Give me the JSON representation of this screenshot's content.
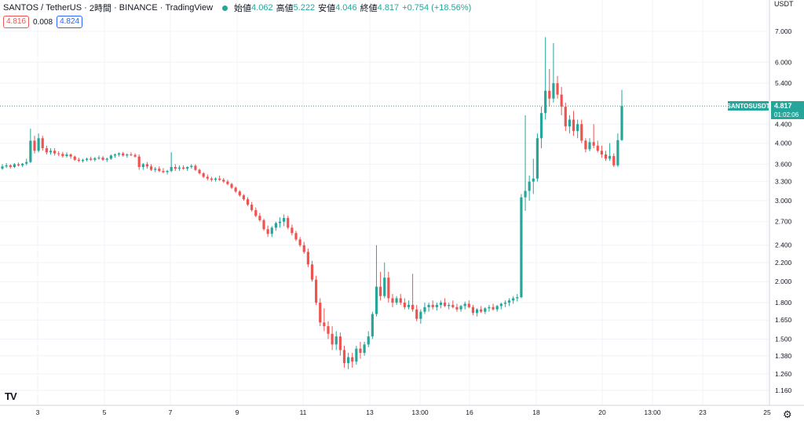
{
  "header": {
    "symbol": "SANTOS",
    "sep1": "/",
    "quote": "TetherUS",
    "sep2": "·",
    "interval": "2時間",
    "sep3": "·",
    "exchange": "BINANCE",
    "sep4": "·",
    "source": "TradingView",
    "open_label": "始値",
    "open_value": "4.062",
    "high_label": "高値",
    "high_value": "5.222",
    "low_label": "安値",
    "low_value": "4.046",
    "close_label": "終値",
    "close_value": "4.817",
    "change_value": "+0.754 (+18.56%)"
  },
  "quote_boxes": {
    "bid": "4.816",
    "spread": "0.008",
    "ask": "4.824"
  },
  "price_label": {
    "ticker": "SANTOSUSDT",
    "price": "4.817",
    "countdown": "01:02:06"
  },
  "logo_text": "TV",
  "colors": {
    "up": "#26a69a",
    "down": "#ef5350",
    "grid": "#f0f3fa",
    "axis_text": "#131722"
  },
  "chart_data": {
    "type": "candlestick",
    "y_axis": {
      "currency": "USDT",
      "scale": "log",
      "ticks": [
        7.0,
        6.0,
        5.4,
        4.4,
        4.0,
        3.6,
        3.3,
        3.0,
        2.7,
        2.4,
        2.2,
        2.0,
        1.8,
        1.65,
        1.5,
        1.38,
        1.26,
        1.16
      ],
      "tick_labels": [
        "7.000",
        "6.000",
        "5.400",
        "4.400",
        "4.000",
        "3.600",
        "3.300",
        "3.000",
        "2.700",
        "2.400",
        "2.200",
        "2.000",
        "1.800",
        "1.650",
        "1.500",
        "1.380",
        "1.260",
        "1.160"
      ]
    },
    "x_axis": {
      "tick_labels": [
        "3",
        "5",
        "7",
        "9",
        "11",
        "13",
        "13:00",
        "16",
        "18",
        "20",
        "13:00",
        "23",
        "25"
      ]
    },
    "last_price": 4.817,
    "candles": [
      [
        3.52,
        3.6,
        3.5,
        3.56
      ],
      [
        3.56,
        3.62,
        3.53,
        3.58
      ],
      [
        3.58,
        3.6,
        3.52,
        3.55
      ],
      [
        3.55,
        3.62,
        3.53,
        3.6
      ],
      [
        3.6,
        3.63,
        3.56,
        3.58
      ],
      [
        3.58,
        3.62,
        3.55,
        3.61
      ],
      [
        3.61,
        3.7,
        3.58,
        3.64
      ],
      [
        3.64,
        4.3,
        3.62,
        4.05
      ],
      [
        4.05,
        4.15,
        3.8,
        3.85
      ],
      [
        3.85,
        4.2,
        3.82,
        4.1
      ],
      [
        4.1,
        4.15,
        3.85,
        3.9
      ],
      [
        3.9,
        3.95,
        3.78,
        3.82
      ],
      [
        3.82,
        3.9,
        3.78,
        3.85
      ],
      [
        3.85,
        3.9,
        3.76,
        3.8
      ],
      [
        3.8,
        3.84,
        3.75,
        3.79
      ],
      [
        3.79,
        3.83,
        3.72,
        3.75
      ],
      [
        3.75,
        3.82,
        3.72,
        3.78
      ],
      [
        3.78,
        3.8,
        3.7,
        3.74
      ],
      [
        3.74,
        3.76,
        3.66,
        3.68
      ],
      [
        3.68,
        3.72,
        3.64,
        3.66
      ],
      [
        3.66,
        3.7,
        3.63,
        3.68
      ],
      [
        3.68,
        3.72,
        3.65,
        3.7
      ],
      [
        3.7,
        3.74,
        3.66,
        3.68
      ],
      [
        3.68,
        3.73,
        3.65,
        3.71
      ],
      [
        3.71,
        3.76,
        3.68,
        3.72
      ],
      [
        3.72,
        3.75,
        3.66,
        3.68
      ],
      [
        3.68,
        3.72,
        3.64,
        3.7
      ],
      [
        3.7,
        3.78,
        3.68,
        3.76
      ],
      [
        3.76,
        3.8,
        3.72,
        3.78
      ],
      [
        3.78,
        3.82,
        3.74,
        3.8
      ],
      [
        3.8,
        3.83,
        3.74,
        3.76
      ],
      [
        3.76,
        3.8,
        3.72,
        3.78
      ],
      [
        3.78,
        3.82,
        3.75,
        3.77
      ],
      [
        3.77,
        3.8,
        3.72,
        3.74
      ],
      [
        3.74,
        3.78,
        3.5,
        3.55
      ],
      [
        3.55,
        3.62,
        3.5,
        3.6
      ],
      [
        3.6,
        3.64,
        3.52,
        3.56
      ],
      [
        3.56,
        3.6,
        3.48,
        3.5
      ],
      [
        3.5,
        3.55,
        3.46,
        3.52
      ],
      [
        3.52,
        3.56,
        3.46,
        3.48
      ],
      [
        3.48,
        3.53,
        3.44,
        3.46
      ],
      [
        3.46,
        3.5,
        3.42,
        3.48
      ],
      [
        3.48,
        3.82,
        3.46,
        3.55
      ],
      [
        3.55,
        3.6,
        3.48,
        3.52
      ],
      [
        3.52,
        3.58,
        3.48,
        3.54
      ],
      [
        3.54,
        3.58,
        3.5,
        3.52
      ],
      [
        3.52,
        3.56,
        3.48,
        3.55
      ],
      [
        3.55,
        3.6,
        3.52,
        3.57
      ],
      [
        3.57,
        3.6,
        3.48,
        3.5
      ],
      [
        3.5,
        3.52,
        3.42,
        3.44
      ],
      [
        3.44,
        3.46,
        3.36,
        3.38
      ],
      [
        3.38,
        3.42,
        3.32,
        3.35
      ],
      [
        3.35,
        3.38,
        3.3,
        3.33
      ],
      [
        3.33,
        3.37,
        3.3,
        3.35
      ],
      [
        3.35,
        3.4,
        3.31,
        3.33
      ],
      [
        3.33,
        3.36,
        3.28,
        3.3
      ],
      [
        3.3,
        3.33,
        3.24,
        3.26
      ],
      [
        3.26,
        3.28,
        3.18,
        3.2
      ],
      [
        3.2,
        3.22,
        3.12,
        3.14
      ],
      [
        3.14,
        3.16,
        3.06,
        3.08
      ],
      [
        3.08,
        3.1,
        3.0,
        3.02
      ],
      [
        3.02,
        3.05,
        2.92,
        2.94
      ],
      [
        2.94,
        2.98,
        2.84,
        2.86
      ],
      [
        2.86,
        2.9,
        2.76,
        2.78
      ],
      [
        2.78,
        2.82,
        2.7,
        2.72
      ],
      [
        2.72,
        2.74,
        2.58,
        2.6
      ],
      [
        2.6,
        2.65,
        2.5,
        2.54
      ],
      [
        2.54,
        2.64,
        2.5,
        2.62
      ],
      [
        2.62,
        2.7,
        2.58,
        2.68
      ],
      [
        2.68,
        2.76,
        2.62,
        2.7
      ],
      [
        2.7,
        2.8,
        2.64,
        2.75
      ],
      [
        2.75,
        2.78,
        2.6,
        2.62
      ],
      [
        2.62,
        2.66,
        2.52,
        2.55
      ],
      [
        2.55,
        2.58,
        2.45,
        2.47
      ],
      [
        2.47,
        2.5,
        2.38,
        2.4
      ],
      [
        2.4,
        2.44,
        2.3,
        2.32
      ],
      [
        2.32,
        2.36,
        2.15,
        2.18
      ],
      [
        2.18,
        2.22,
        2.0,
        2.02
      ],
      [
        2.02,
        2.06,
        1.78,
        1.8
      ],
      [
        1.8,
        1.84,
        1.6,
        1.63
      ],
      [
        1.63,
        1.75,
        1.56,
        1.6
      ],
      [
        1.6,
        1.64,
        1.5,
        1.54
      ],
      [
        1.54,
        1.6,
        1.42,
        1.46
      ],
      [
        1.46,
        1.56,
        1.42,
        1.52
      ],
      [
        1.52,
        1.55,
        1.38,
        1.42
      ],
      [
        1.42,
        1.45,
        1.3,
        1.33
      ],
      [
        1.33,
        1.4,
        1.29,
        1.37
      ],
      [
        1.37,
        1.4,
        1.3,
        1.34
      ],
      [
        1.34,
        1.45,
        1.32,
        1.43
      ],
      [
        1.43,
        1.48,
        1.36,
        1.4
      ],
      [
        1.4,
        1.48,
        1.38,
        1.46
      ],
      [
        1.46,
        1.56,
        1.44,
        1.52
      ],
      [
        1.52,
        1.72,
        1.5,
        1.7
      ],
      [
        1.7,
        2.4,
        1.68,
        1.95
      ],
      [
        1.95,
        2.1,
        1.82,
        1.86
      ],
      [
        1.86,
        2.2,
        1.84,
        2.04
      ],
      [
        2.04,
        2.1,
        1.8,
        1.84
      ],
      [
        1.84,
        1.88,
        1.76,
        1.8
      ],
      [
        1.8,
        1.86,
        1.78,
        1.84
      ],
      [
        1.84,
        1.88,
        1.78,
        1.8
      ],
      [
        1.8,
        1.84,
        1.74,
        1.76
      ],
      [
        1.76,
        1.82,
        1.74,
        1.78
      ],
      [
        1.78,
        2.08,
        1.72,
        1.74
      ],
      [
        1.74,
        1.78,
        1.64,
        1.66
      ],
      [
        1.66,
        1.74,
        1.62,
        1.72
      ],
      [
        1.72,
        1.8,
        1.7,
        1.76
      ],
      [
        1.76,
        1.8,
        1.72,
        1.78
      ],
      [
        1.78,
        1.82,
        1.74,
        1.76
      ],
      [
        1.76,
        1.8,
        1.73,
        1.78
      ],
      [
        1.78,
        1.82,
        1.75,
        1.8
      ],
      [
        1.8,
        1.84,
        1.76,
        1.77
      ],
      [
        1.77,
        1.8,
        1.74,
        1.78
      ],
      [
        1.78,
        1.82,
        1.75,
        1.76
      ],
      [
        1.76,
        1.79,
        1.72,
        1.74
      ],
      [
        1.74,
        1.78,
        1.72,
        1.77
      ],
      [
        1.77,
        1.81,
        1.74,
        1.79
      ],
      [
        1.79,
        1.82,
        1.75,
        1.76
      ],
      [
        1.76,
        1.78,
        1.69,
        1.71
      ],
      [
        1.71,
        1.75,
        1.68,
        1.74
      ],
      [
        1.74,
        1.77,
        1.71,
        1.72
      ],
      [
        1.72,
        1.76,
        1.7,
        1.75
      ],
      [
        1.75,
        1.78,
        1.72,
        1.76
      ],
      [
        1.76,
        1.79,
        1.73,
        1.74
      ],
      [
        1.74,
        1.78,
        1.72,
        1.77
      ],
      [
        1.77,
        1.8,
        1.74,
        1.79
      ],
      [
        1.79,
        1.82,
        1.76,
        1.8
      ],
      [
        1.8,
        1.84,
        1.77,
        1.82
      ],
      [
        1.82,
        1.86,
        1.79,
        1.84
      ],
      [
        1.84,
        1.88,
        1.81,
        1.85
      ],
      [
        1.85,
        3.1,
        1.84,
        3.05
      ],
      [
        3.05,
        4.6,
        2.85,
        3.15
      ],
      [
        3.15,
        3.4,
        3.0,
        3.3
      ],
      [
        3.3,
        3.7,
        3.1,
        3.35
      ],
      [
        3.35,
        4.2,
        3.3,
        4.1
      ],
      [
        4.1,
        4.8,
        3.9,
        4.65
      ],
      [
        4.65,
        6.8,
        4.5,
        5.2
      ],
      [
        5.2,
        5.8,
        4.8,
        5.0
      ],
      [
        5.0,
        6.6,
        4.9,
        5.4
      ],
      [
        5.4,
        5.6,
        5.0,
        5.1
      ],
      [
        5.1,
        5.3,
        4.6,
        4.8
      ],
      [
        4.8,
        4.9,
        4.25,
        4.35
      ],
      [
        4.35,
        4.6,
        4.2,
        4.5
      ],
      [
        4.5,
        4.7,
        4.15,
        4.25
      ],
      [
        4.25,
        4.5,
        4.1,
        4.4
      ],
      [
        4.4,
        4.5,
        4.0,
        4.05
      ],
      [
        4.05,
        4.1,
        3.82,
        3.88
      ],
      [
        3.88,
        4.1,
        3.84,
        4.02
      ],
      [
        4.02,
        4.4,
        3.9,
        3.95
      ],
      [
        3.95,
        4.05,
        3.82,
        3.85
      ],
      [
        3.85,
        3.95,
        3.72,
        3.78
      ],
      [
        3.78,
        3.85,
        3.66,
        3.7
      ],
      [
        3.7,
        4.0,
        3.66,
        3.75
      ],
      [
        3.75,
        3.8,
        3.55,
        3.58
      ],
      [
        3.58,
        4.2,
        3.55,
        4.06
      ],
      [
        4.062,
        5.222,
        4.046,
        4.817
      ]
    ]
  }
}
